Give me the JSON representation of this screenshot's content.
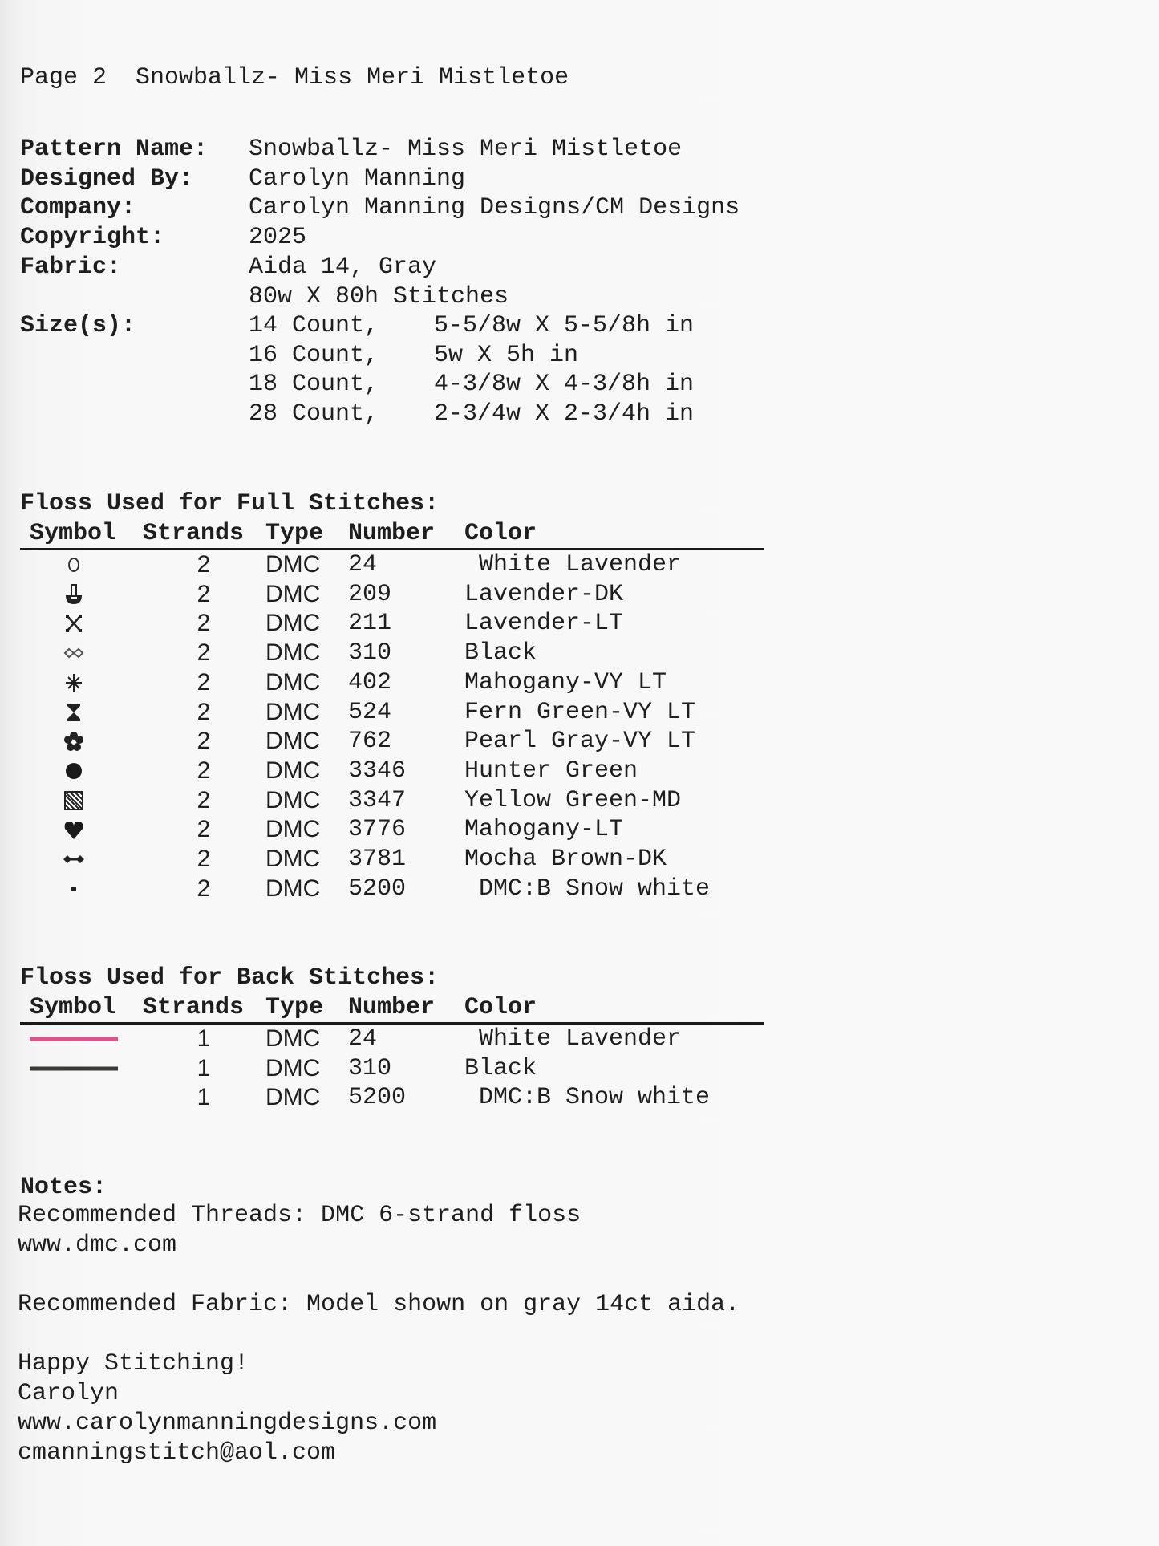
{
  "page_header": "Page 2  Snowballz- Miss Meri Mistletoe",
  "info": [
    {
      "label": "Pattern Name:",
      "value": "Snowballz- Miss Meri Mistletoe"
    },
    {
      "label": "Designed By:",
      "value": "Carolyn Manning"
    },
    {
      "label": "Company:",
      "value": "Carolyn Manning Designs/CM Designs"
    },
    {
      "label": "Copyright:",
      "value": "2025"
    },
    {
      "label": "Fabric:",
      "value": "Aida 14, Gray"
    },
    {
      "label": "",
      "value": "80w X 80h Stitches"
    }
  ],
  "sizes_label": "Size(s):",
  "sizes": [
    {
      "count": "14 Count,",
      "size": "5-5/8w X 5-5/8h in"
    },
    {
      "count": "16 Count,",
      "size": "5w X 5h in"
    },
    {
      "count": "18 Count,",
      "size": "4-3/8w X 4-3/8h in"
    },
    {
      "count": "28 Count,",
      "size": "2-3/4w X 2-3/4h in"
    }
  ],
  "columns": {
    "symbol": "Symbol",
    "strands": "Strands",
    "type": "Type",
    "number": "Number",
    "color": "Color"
  },
  "full_stitches": {
    "title": "Floss Used for Full Stitches:",
    "rows": [
      {
        "symbol": "circle-outline",
        "strands": "2",
        "type": "DMC",
        "number": "24",
        "color": " White Lavender"
      },
      {
        "symbol": "anchor-drop",
        "strands": "2",
        "type": "DMC",
        "number": "209",
        "color": "Lavender-DK"
      },
      {
        "symbol": "x-cross",
        "strands": "2",
        "type": "DMC",
        "number": "211",
        "color": "Lavender-LT"
      },
      {
        "symbol": "infinity",
        "strands": "2",
        "type": "DMC",
        "number": "310",
        "color": "Black"
      },
      {
        "symbol": "asterisk",
        "strands": "2",
        "type": "DMC",
        "number": "402",
        "color": "Mahogany-VY LT"
      },
      {
        "symbol": "hourglass",
        "strands": "2",
        "type": "DMC",
        "number": "524",
        "color": "Fern Green-VY LT"
      },
      {
        "symbol": "flower",
        "strands": "2",
        "type": "DMC",
        "number": "762",
        "color": "Pearl Gray-VY LT"
      },
      {
        "symbol": "filled-circle",
        "strands": "2",
        "type": "DMC",
        "number": "3346",
        "color": "Hunter Green"
      },
      {
        "symbol": "hatched-square",
        "strands": "2",
        "type": "DMC",
        "number": "3347",
        "color": "Yellow Green-MD"
      },
      {
        "symbol": "heart",
        "strands": "2",
        "type": "DMC",
        "number": "3776",
        "color": "Mahogany-LT"
      },
      {
        "symbol": "double-diamond",
        "strands": "2",
        "type": "DMC",
        "number": "3781",
        "color": "Mocha Brown-DK"
      },
      {
        "symbol": "small-square",
        "strands": "2",
        "type": "DMC",
        "number": "5200",
        "color": " DMC:B Snow white"
      }
    ]
  },
  "back_stitches": {
    "title": "Floss Used for Back Stitches:",
    "rows": [
      {
        "line_color": "#e0508a",
        "strands": "1",
        "type": "DMC",
        "number": "24",
        "color": " White Lavender"
      },
      {
        "line_color": "#3a3a32",
        "strands": "1",
        "type": "DMC",
        "number": "310",
        "color": "Black"
      },
      {
        "line_color": "",
        "strands": "1",
        "type": "DMC",
        "number": "5200",
        "color": " DMC:B Snow white"
      }
    ]
  },
  "notes": {
    "title": "Notes:",
    "lines": [
      "Recommended Threads: DMC 6-strand floss",
      "www.dmc.com",
      "",
      "Recommended Fabric: Model shown on gray 14ct aida.",
      "",
      "Happy Stitching!",
      "Carolyn",
      "www.carolynmanningdesigns.com",
      "cmanningstitch@aol.com"
    ]
  }
}
